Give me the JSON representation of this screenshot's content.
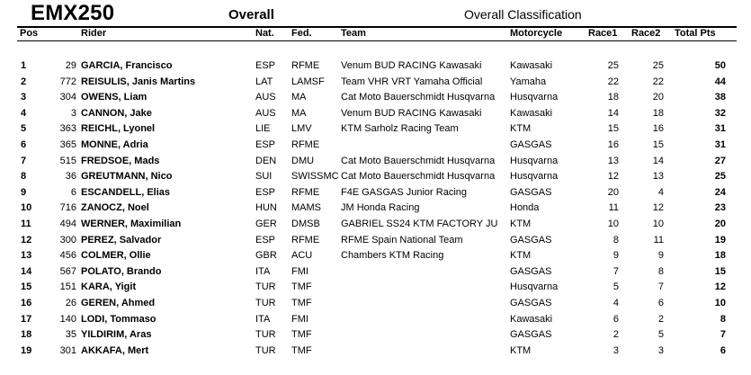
{
  "header": {
    "class_name": "EMX250",
    "overall": "Overall",
    "classification": "Overall Classification"
  },
  "columns": {
    "pos": "Pos",
    "rider": "Rider",
    "nat": "Nat.",
    "fed": "Fed.",
    "team": "Team",
    "motorcycle": "Motorcycle",
    "race1": "Race1",
    "race2": "Race2",
    "total": "Total Pts"
  },
  "rows": [
    {
      "pos": "1",
      "num": "29",
      "rider": "GARCIA, Francisco",
      "nat": "ESP",
      "fed": "RFME",
      "team": "Venum BUD RACING Kawasaki",
      "moto": "Kawasaki",
      "r1": "25",
      "r2": "25",
      "total": "50"
    },
    {
      "pos": "2",
      "num": "772",
      "rider": "REISULIS, Janis Martins",
      "nat": "LAT",
      "fed": "LAMSF",
      "team": "Team VHR VRT Yamaha Official",
      "moto": "Yamaha",
      "r1": "22",
      "r2": "22",
      "total": "44"
    },
    {
      "pos": "3",
      "num": "304",
      "rider": "OWENS, Liam",
      "nat": "AUS",
      "fed": "MA",
      "team": "Cat Moto Bauerschmidt Husqvarna",
      "moto": "Husqvarna",
      "r1": "18",
      "r2": "20",
      "total": "38"
    },
    {
      "pos": "4",
      "num": "3",
      "rider": "CANNON, Jake",
      "nat": "AUS",
      "fed": "MA",
      "team": "Venum BUD RACING Kawasaki",
      "moto": "Kawasaki",
      "r1": "14",
      "r2": "18",
      "total": "32"
    },
    {
      "pos": "5",
      "num": "363",
      "rider": "REICHL, Lyonel",
      "nat": "LIE",
      "fed": "LMV",
      "team": "KTM Sarholz Racing Team",
      "moto": "KTM",
      "r1": "15",
      "r2": "16",
      "total": "31"
    },
    {
      "pos": "6",
      "num": "365",
      "rider": "MONNE, Adria",
      "nat": "ESP",
      "fed": "RFME",
      "team": "",
      "moto": "GASGAS",
      "r1": "16",
      "r2": "15",
      "total": "31"
    },
    {
      "pos": "7",
      "num": "515",
      "rider": "FREDSOE, Mads",
      "nat": "DEN",
      "fed": "DMU",
      "team": "Cat Moto Bauerschmidt Husqvarna",
      "moto": "Husqvarna",
      "r1": "13",
      "r2": "14",
      "total": "27"
    },
    {
      "pos": "8",
      "num": "36",
      "rider": "GREUTMANN, Nico",
      "nat": "SUI",
      "fed": "SWISSMC",
      "team": "Cat Moto Bauerschmidt Husqvarna",
      "moto": "Husqvarna",
      "r1": "12",
      "r2": "13",
      "total": "25"
    },
    {
      "pos": "9",
      "num": "6",
      "rider": "ESCANDELL, Elias",
      "nat": "ESP",
      "fed": "RFME",
      "team": "F4E GASGAS Junior Racing",
      "moto": "GASGAS",
      "r1": "20",
      "r2": "4",
      "total": "24"
    },
    {
      "pos": "10",
      "num": "716",
      "rider": "ZANOCZ, Noel",
      "nat": "HUN",
      "fed": "MAMS",
      "team": "JM Honda Racing",
      "moto": "Honda",
      "r1": "11",
      "r2": "12",
      "total": "23"
    },
    {
      "pos": "11",
      "num": "494",
      "rider": "WERNER, Maximilian",
      "nat": "GER",
      "fed": "DMSB",
      "team": "GABRIEL SS24 KTM FACTORY JU",
      "moto": "KTM",
      "r1": "10",
      "r2": "10",
      "total": "20"
    },
    {
      "pos": "12",
      "num": "300",
      "rider": "PEREZ, Salvador",
      "nat": "ESP",
      "fed": "RFME",
      "team": "RFME Spain National Team",
      "moto": "GASGAS",
      "r1": "8",
      "r2": "11",
      "total": "19"
    },
    {
      "pos": "13",
      "num": "456",
      "rider": "COLMER, Ollie",
      "nat": "GBR",
      "fed": "ACU",
      "team": "Chambers KTM Racing",
      "moto": "KTM",
      "r1": "9",
      "r2": "9",
      "total": "18"
    },
    {
      "pos": "14",
      "num": "567",
      "rider": "POLATO, Brando",
      "nat": "ITA",
      "fed": "FMI",
      "team": "",
      "moto": "GASGAS",
      "r1": "7",
      "r2": "8",
      "total": "15"
    },
    {
      "pos": "15",
      "num": "151",
      "rider": "KARA, Yigit",
      "nat": "TUR",
      "fed": "TMF",
      "team": "",
      "moto": "Husqvarna",
      "r1": "5",
      "r2": "7",
      "total": "12"
    },
    {
      "pos": "16",
      "num": "26",
      "rider": "GEREN, Ahmed",
      "nat": "TUR",
      "fed": "TMF",
      "team": "",
      "moto": "GASGAS",
      "r1": "4",
      "r2": "6",
      "total": "10"
    },
    {
      "pos": "17",
      "num": "140",
      "rider": "LODI, Tommaso",
      "nat": "ITA",
      "fed": "FMI",
      "team": "",
      "moto": "Kawasaki",
      "r1": "6",
      "r2": "2",
      "total": "8"
    },
    {
      "pos": "18",
      "num": "35",
      "rider": "YILDIRIM, Aras",
      "nat": "TUR",
      "fed": "TMF",
      "team": "",
      "moto": "GASGAS",
      "r1": "2",
      "r2": "5",
      "total": "7"
    },
    {
      "pos": "19",
      "num": "301",
      "rider": "AKKAFA, Mert",
      "nat": "TUR",
      "fed": "TMF",
      "team": "",
      "moto": "KTM",
      "r1": "3",
      "r2": "3",
      "total": "6"
    }
  ]
}
